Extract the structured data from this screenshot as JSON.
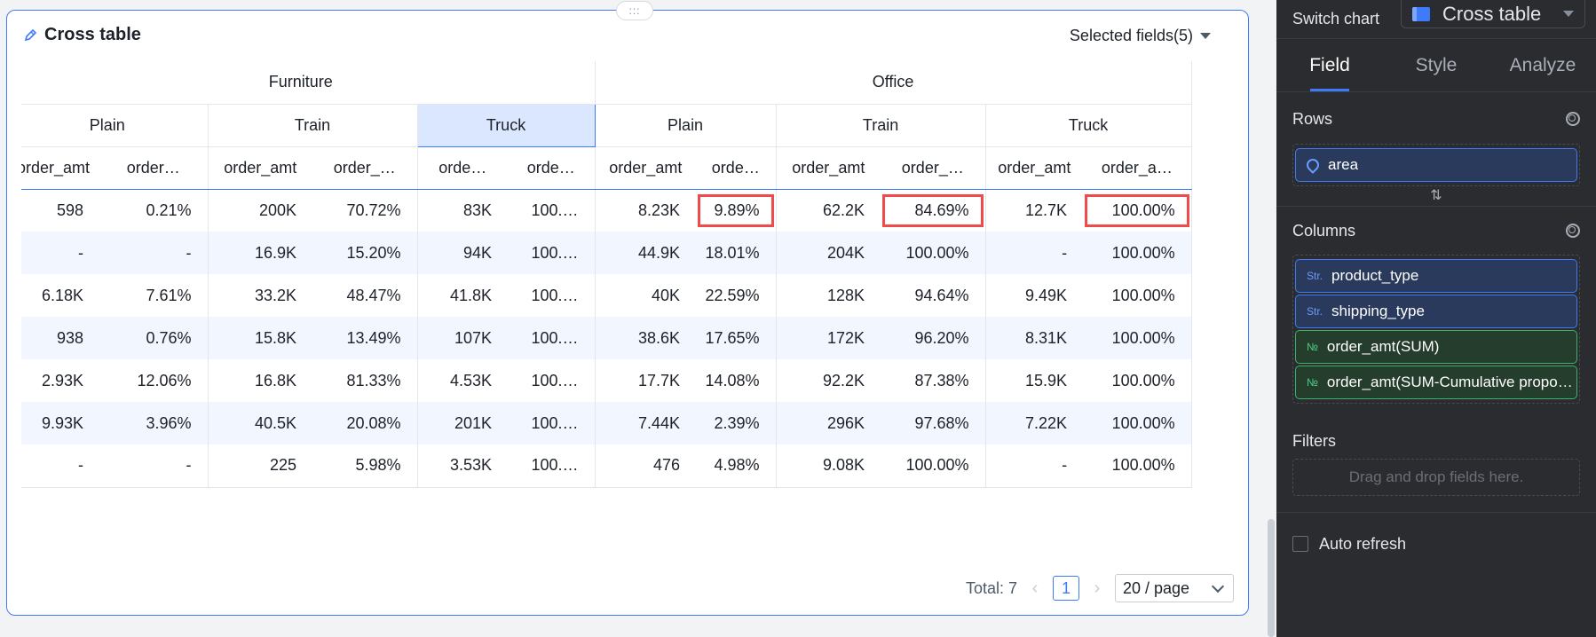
{
  "card": {
    "title": "Cross table",
    "selected_fields": "Selected fields(5)",
    "drag_handle": ":::"
  },
  "table": {
    "top_headers": [
      "Furniture",
      "Office"
    ],
    "second_headers": [
      "Plain",
      "Train",
      "Truck",
      "Plain",
      "Train",
      "Truck"
    ],
    "leaf_headers": [
      "order_amt",
      "order_amt(SUM-Cumulative proportion)",
      "order_amt",
      "order_amt(SUM-Cumulative proportion)",
      "order_amt(SUM)",
      "order_amt(SUM-Cumulative proportion)",
      "order_amt",
      "order_amt(SUM-Cumulative proportion)",
      "order_amt",
      "order_amt(SUM-Cumulative proportion)",
      "order_amt",
      "order_amt(SUM-Cumulative proportion)"
    ],
    "leaf_display": [
      "order_amt",
      "order…",
      "order_amt",
      "order_…",
      "orde…",
      "orde…",
      "order_amt",
      "orde…",
      "order_amt",
      "order_…",
      "order_amt",
      "order_a…"
    ],
    "rows": [
      [
        "598",
        "0.21%",
        "200K",
        "70.72%",
        "83K",
        "100.…",
        "8.23K",
        "9.89%",
        "62.2K",
        "84.69%",
        "12.7K",
        "100.00%"
      ],
      [
        "-",
        "-",
        "16.9K",
        "15.20%",
        "94K",
        "100.…",
        "44.9K",
        "18.01%",
        "204K",
        "100.00%",
        "-",
        "100.00%"
      ],
      [
        "6.18K",
        "7.61%",
        "33.2K",
        "48.47%",
        "41.8K",
        "100.…",
        "40K",
        "22.59%",
        "128K",
        "94.64%",
        "9.49K",
        "100.00%"
      ],
      [
        "938",
        "0.76%",
        "15.8K",
        "13.49%",
        "107K",
        "100.…",
        "38.6K",
        "17.65%",
        "172K",
        "96.20%",
        "8.31K",
        "100.00%"
      ],
      [
        "2.93K",
        "12.06%",
        "16.8K",
        "81.33%",
        "4.53K",
        "100.…",
        "17.7K",
        "14.08%",
        "92.2K",
        "87.38%",
        "15.9K",
        "100.00%"
      ],
      [
        "9.93K",
        "3.96%",
        "40.5K",
        "20.08%",
        "201K",
        "100.…",
        "7.44K",
        "2.39%",
        "296K",
        "97.68%",
        "7.22K",
        "100.00%"
      ],
      [
        "-",
        "-",
        "225",
        "5.98%",
        "3.53K",
        "100.…",
        "476",
        "4.98%",
        "9.08K",
        "100.00%",
        "-",
        "100.00%"
      ]
    ]
  },
  "pagination": {
    "total": "Total: 7",
    "current_page": "1",
    "page_size": "20 / page",
    "prev": "‹",
    "next": "›"
  },
  "panel": {
    "switch_chart_label": "Switch chart",
    "chart_type": "Cross table",
    "tabs": [
      "Field",
      "Style",
      "Analyze"
    ],
    "rows_label": "Rows",
    "rows_fields": [
      "area"
    ],
    "columns_label": "Columns",
    "str_tag": "Str.",
    "num_tag": "№",
    "columns_fields": [
      "product_type",
      "shipping_type",
      "order_amt(SUM)",
      "order_amt(SUM-Cumulative proportion)"
    ],
    "filters_label": "Filters",
    "filters_placeholder": "Drag and drop fields here.",
    "auto_refresh": "Auto refresh",
    "swap_icon": "⇅"
  },
  "colors": {
    "accent": "#3e7bfa",
    "highlight": "#ef4b4b",
    "panel_bg": "#2b2c30"
  }
}
